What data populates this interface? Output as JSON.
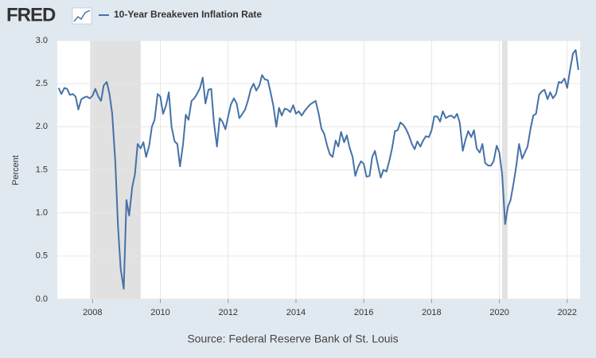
{
  "logo": "FRED",
  "chart_data": {
    "type": "line",
    "ylabel": "Percent",
    "source": "Source: Federal Reserve Bank of St. Louis",
    "x": [
      2007.0,
      2007.08,
      2007.17,
      2007.25,
      2007.33,
      2007.42,
      2007.5,
      2007.58,
      2007.67,
      2007.75,
      2007.83,
      2007.92,
      2008.0,
      2008.08,
      2008.17,
      2008.25,
      2008.33,
      2008.42,
      2008.5,
      2008.58,
      2008.67,
      2008.75,
      2008.83,
      2008.92,
      2009.0,
      2009.08,
      2009.17,
      2009.25,
      2009.33,
      2009.42,
      2009.5,
      2009.58,
      2009.67,
      2009.75,
      2009.83,
      2009.92,
      2010.0,
      2010.08,
      2010.17,
      2010.25,
      2010.33,
      2010.42,
      2010.5,
      2010.58,
      2010.67,
      2010.75,
      2010.83,
      2010.92,
      2011.0,
      2011.08,
      2011.17,
      2011.25,
      2011.33,
      2011.42,
      2011.5,
      2011.58,
      2011.67,
      2011.75,
      2011.83,
      2011.92,
      2012.0,
      2012.08,
      2012.17,
      2012.25,
      2012.33,
      2012.42,
      2012.5,
      2012.58,
      2012.67,
      2012.75,
      2012.83,
      2012.92,
      2013.0,
      2013.08,
      2013.17,
      2013.25,
      2013.33,
      2013.42,
      2013.5,
      2013.58,
      2013.67,
      2013.75,
      2013.83,
      2013.92,
      2014.0,
      2014.08,
      2014.17,
      2014.25,
      2014.33,
      2014.42,
      2014.5,
      2014.58,
      2014.67,
      2014.75,
      2014.83,
      2014.92,
      2015.0,
      2015.08,
      2015.17,
      2015.25,
      2015.33,
      2015.42,
      2015.5,
      2015.58,
      2015.67,
      2015.75,
      2015.83,
      2015.92,
      2016.0,
      2016.08,
      2016.17,
      2016.25,
      2016.33,
      2016.42,
      2016.5,
      2016.58,
      2016.67,
      2016.75,
      2016.83,
      2016.92,
      2017.0,
      2017.08,
      2017.17,
      2017.25,
      2017.33,
      2017.42,
      2017.5,
      2017.58,
      2017.67,
      2017.75,
      2017.83,
      2017.92,
      2018.0,
      2018.08,
      2018.17,
      2018.25,
      2018.33,
      2018.42,
      2018.5,
      2018.58,
      2018.67,
      2018.75,
      2018.83,
      2018.92,
      2019.0,
      2019.08,
      2019.17,
      2019.25,
      2019.33,
      2019.42,
      2019.5,
      2019.58,
      2019.67,
      2019.75,
      2019.83,
      2019.92,
      2020.0,
      2020.08,
      2020.17,
      2020.25,
      2020.33,
      2020.42,
      2020.5,
      2020.58,
      2020.67,
      2020.75,
      2020.83,
      2020.92,
      2021.0,
      2021.08,
      2021.17,
      2021.25,
      2021.33,
      2021.42,
      2021.5,
      2021.58,
      2021.67,
      2021.75,
      2021.83,
      2021.92,
      2022.0,
      2022.08,
      2022.17,
      2022.25,
      2022.33
    ],
    "series": [
      {
        "name": "10-Year Breakeven Inflation Rate",
        "color": "#4572a7",
        "values": [
          2.45,
          2.38,
          2.45,
          2.44,
          2.37,
          2.38,
          2.35,
          2.2,
          2.32,
          2.34,
          2.35,
          2.33,
          2.36,
          2.44,
          2.35,
          2.3,
          2.48,
          2.52,
          2.38,
          2.15,
          1.6,
          0.85,
          0.35,
          0.12,
          1.15,
          0.97,
          1.3,
          1.45,
          1.8,
          1.75,
          1.82,
          1.65,
          1.78,
          2.0,
          2.08,
          2.38,
          2.35,
          2.15,
          2.25,
          2.4,
          2.0,
          1.83,
          1.8,
          1.54,
          1.8,
          2.14,
          2.08,
          2.3,
          2.33,
          2.38,
          2.45,
          2.57,
          2.27,
          2.43,
          2.44,
          2.05,
          1.77,
          2.1,
          2.06,
          1.97,
          2.12,
          2.26,
          2.33,
          2.27,
          2.1,
          2.15,
          2.2,
          2.3,
          2.44,
          2.5,
          2.42,
          2.48,
          2.6,
          2.55,
          2.54,
          2.4,
          2.25,
          2.0,
          2.22,
          2.13,
          2.21,
          2.2,
          2.17,
          2.25,
          2.15,
          2.18,
          2.13,
          2.18,
          2.22,
          2.26,
          2.28,
          2.3,
          2.15,
          1.98,
          1.92,
          1.78,
          1.68,
          1.65,
          1.84,
          1.77,
          1.94,
          1.82,
          1.9,
          1.76,
          1.65,
          1.43,
          1.53,
          1.6,
          1.57,
          1.42,
          1.43,
          1.65,
          1.72,
          1.55,
          1.41,
          1.5,
          1.48,
          1.6,
          1.74,
          1.95,
          1.96,
          2.05,
          2.02,
          1.97,
          1.9,
          1.8,
          1.74,
          1.83,
          1.77,
          1.84,
          1.89,
          1.88,
          1.96,
          2.12,
          2.12,
          2.06,
          2.18,
          2.1,
          2.12,
          2.13,
          2.1,
          2.15,
          2.05,
          1.72,
          1.85,
          1.95,
          1.88,
          1.96,
          1.75,
          1.7,
          1.8,
          1.58,
          1.55,
          1.55,
          1.6,
          1.78,
          1.7,
          1.45,
          0.87,
          1.07,
          1.15,
          1.35,
          1.55,
          1.8,
          1.63,
          1.7,
          1.77,
          1.98,
          2.13,
          2.15,
          2.37,
          2.41,
          2.43,
          2.32,
          2.4,
          2.33,
          2.38,
          2.52,
          2.51,
          2.56,
          2.45,
          2.65,
          2.85,
          2.89,
          2.66
        ]
      }
    ],
    "shaded_ranges": [
      [
        2007.93,
        2009.42
      ],
      [
        2020.08,
        2020.24
      ]
    ],
    "shade_color": "#e1e1e1",
    "xlim": [
      2006.96,
      2022.38
    ],
    "xticks": [
      2008,
      2010,
      2012,
      2014,
      2016,
      2018,
      2020,
      2022
    ],
    "ylim": [
      0,
      3
    ],
    "yticks": [
      {
        "value": 0,
        "label": "0.0"
      },
      {
        "value": 0.5,
        "label": "0.5"
      },
      {
        "value": 1,
        "label": "1.0"
      },
      {
        "value": 1.5,
        "label": "1.5"
      },
      {
        "value": 2,
        "label": "2.0"
      },
      {
        "value": 2.5,
        "label": "2.5"
      },
      {
        "value": 3,
        "label": "3.0"
      }
    ],
    "grid": true
  }
}
